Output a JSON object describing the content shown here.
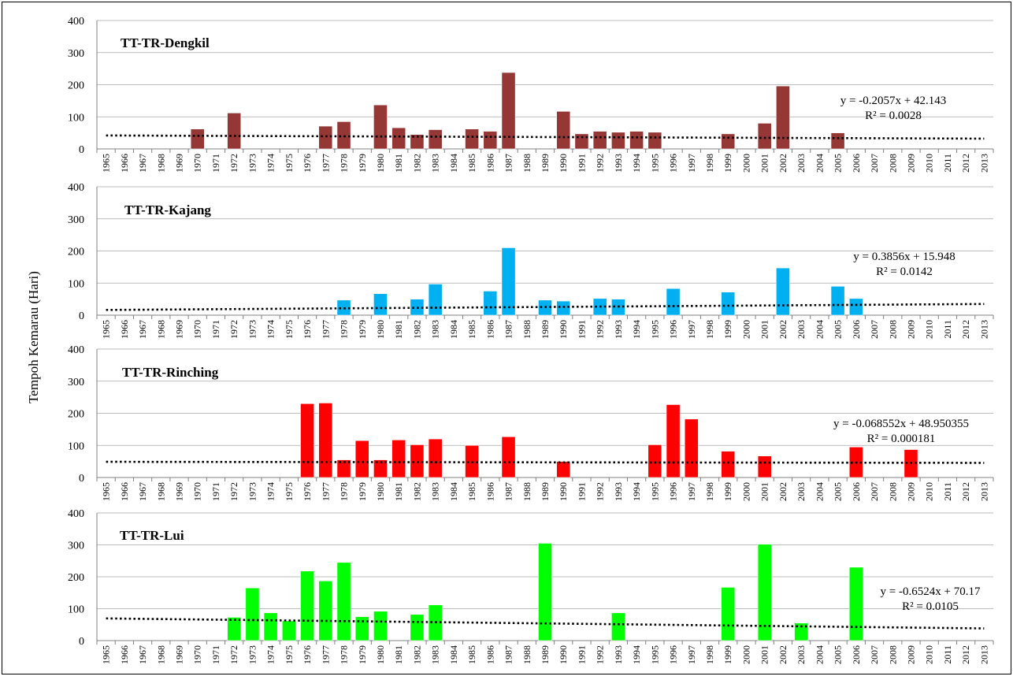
{
  "ylabel": "Tempoh Kemarau (Hari)",
  "chart_data": [
    {
      "type": "bar",
      "title": "TT-TR-Dengkil",
      "color": "#953735",
      "ylim": [
        0,
        400
      ],
      "yticks": [
        0,
        100,
        200,
        300,
        400
      ],
      "x": [
        1970,
        1972,
        1977,
        1978,
        1980,
        1981,
        1982,
        1983,
        1985,
        1986,
        1987,
        1990,
        1991,
        1992,
        1993,
        1994,
        1995,
        1999,
        2001,
        2002,
        2005
      ],
      "values": [
        62,
        112,
        71,
        85,
        137,
        66,
        45,
        60,
        62,
        55,
        238,
        117,
        47,
        55,
        52,
        55,
        52,
        47,
        80,
        196,
        50
      ],
      "trendline": {
        "slope": -0.2057,
        "intercept": 42.143,
        "equation": "y = -0.2057x + 42.143",
        "r2": "R² = 0.0028"
      }
    },
    {
      "type": "bar",
      "title": "TT-TR-Kajang",
      "color": "#00b0f0",
      "ylim": [
        0,
        400
      ],
      "yticks": [
        0,
        100,
        200,
        300,
        400
      ],
      "x": [
        1978,
        1980,
        1982,
        1983,
        1986,
        1987,
        1989,
        1990,
        1992,
        1993,
        1996,
        1999,
        2002,
        2005,
        2006
      ],
      "values": [
        47,
        67,
        50,
        97,
        75,
        210,
        47,
        44,
        52,
        50,
        83,
        72,
        147,
        90,
        52
      ],
      "trendline": {
        "slope": 0.3856,
        "intercept": 15.948,
        "equation": "y = 0.3856x + 15.948",
        "r2": "R² = 0.0142"
      }
    },
    {
      "type": "bar",
      "title": "TT-TR-Rinching",
      "color": "#ff0000",
      "ylim": [
        0,
        400
      ],
      "yticks": [
        0,
        100,
        200,
        300,
        400
      ],
      "x": [
        1976,
        1977,
        1978,
        1979,
        1980,
        1981,
        1982,
        1983,
        1985,
        1987,
        1990,
        1995,
        1996,
        1997,
        1999,
        2001,
        2006,
        2009
      ],
      "values": [
        230,
        232,
        55,
        115,
        55,
        117,
        102,
        120,
        100,
        127,
        50,
        102,
        227,
        182,
        82,
        67,
        95,
        87
      ],
      "trendline": {
        "slope": -0.068552,
        "intercept": 48.950355,
        "equation": "y = -0.068552x + 48.950355",
        "r2": "R² = 0.000181"
      }
    },
    {
      "type": "bar",
      "title": "TT-TR-Lui",
      "color": "#00ff00",
      "ylim": [
        0,
        400
      ],
      "yticks": [
        0,
        100,
        200,
        300,
        400
      ],
      "x": [
        1972,
        1973,
        1974,
        1975,
        1976,
        1977,
        1978,
        1979,
        1980,
        1982,
        1983,
        1989,
        1993,
        1999,
        2001,
        2003,
        2006
      ],
      "values": [
        73,
        165,
        87,
        62,
        218,
        187,
        245,
        75,
        92,
        82,
        112,
        305,
        87,
        167,
        302,
        55,
        230
      ],
      "trendline": {
        "slope": -0.6524,
        "intercept": 70.17,
        "equation": "y = -0.6524x + 70.17",
        "r2": "R² = 0.0105"
      }
    }
  ],
  "categories": [
    "1965",
    "1966",
    "1967",
    "1968",
    "1969",
    "1970",
    "1971",
    "1972",
    "1973",
    "1974",
    "1975",
    "1976",
    "1977",
    "1978",
    "1979",
    "1980",
    "1981",
    "1982",
    "1983",
    "1984",
    "1985",
    "1986",
    "1987",
    "1988",
    "1989",
    "1990",
    "1991",
    "1992",
    "1993",
    "1994",
    "1995",
    "1996",
    "1997",
    "1998",
    "1999",
    "2000",
    "2001",
    "2002",
    "2003",
    "2004",
    "2005",
    "2006",
    "2007",
    "2008",
    "2009",
    "2010",
    "2011",
    "2012",
    "2013"
  ]
}
